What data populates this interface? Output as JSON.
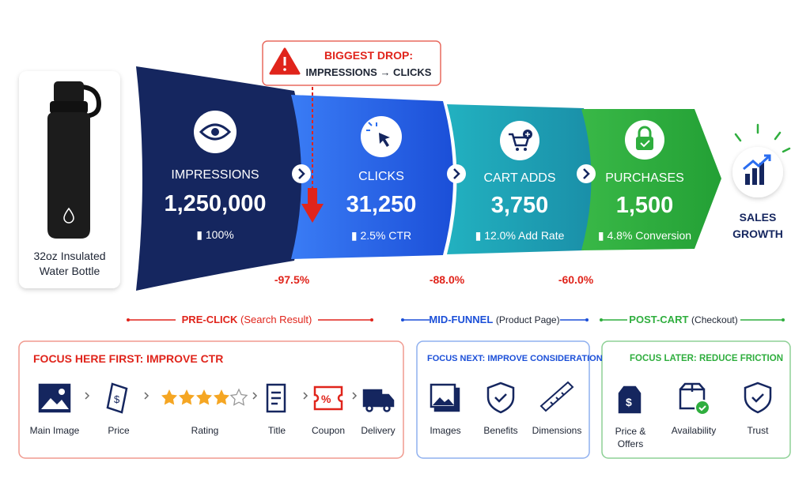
{
  "product": {
    "label": "32oz Insulated Water Bottle"
  },
  "callout": {
    "title": "BIGGEST DROP:",
    "text": "IMPRESSIONS → CLICKS"
  },
  "stages": [
    {
      "name": "IMPRESSIONS",
      "value": "1,250,000",
      "metric": "100%"
    },
    {
      "name": "CLICKS",
      "value": "31,250",
      "metric": "2.5% CTR"
    },
    {
      "name": "CART ADDS",
      "value": "3,750",
      "metric": "12.0% Add Rate"
    },
    {
      "name": "PURCHASES",
      "value": "1,500",
      "metric": "4.8% Conversion"
    }
  ],
  "drops": [
    "-97.5%",
    "-88.0%",
    "-60.0%"
  ],
  "outcome": {
    "label": "SALES GROWTH"
  },
  "phases": [
    {
      "name": "PRE-CLICK",
      "detail": "(Search Result)"
    },
    {
      "name": "MID-FUNNEL",
      "detail": "(Product Page)"
    },
    {
      "name": "POST-CART",
      "detail": "(Checkout)"
    }
  ],
  "panels": [
    {
      "title": "FOCUS HERE FIRST: IMPROVE CTR",
      "items": [
        "Main Image",
        "Price",
        "Rating",
        "Title",
        "Coupon",
        "Delivery"
      ]
    },
    {
      "title": "FOCUS NEXT: IMPROVE CONSIDERATION",
      "items": [
        "Images",
        "Benefits",
        "Dimensions"
      ]
    },
    {
      "title": "FOCUS LATER: REDUCE FRICTION",
      "items": [
        "Price & Offers",
        "Availability",
        "Trust"
      ]
    }
  ]
}
